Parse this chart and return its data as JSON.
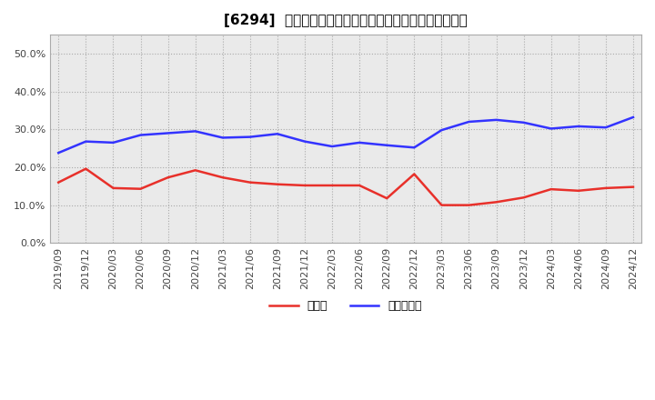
{
  "title": "[6294]  現預金、有利子負債の総資産に対する比率の推移",
  "x_labels": [
    "2019/09",
    "2019/12",
    "2020/03",
    "2020/06",
    "2020/09",
    "2020/12",
    "2021/03",
    "2021/06",
    "2021/09",
    "2021/12",
    "2022/03",
    "2022/06",
    "2022/09",
    "2022/12",
    "2023/03",
    "2023/06",
    "2023/09",
    "2023/12",
    "2024/03",
    "2024/06",
    "2024/09",
    "2024/12"
  ],
  "cash": [
    0.16,
    0.196,
    0.145,
    0.143,
    0.173,
    0.192,
    0.173,
    0.16,
    0.155,
    0.152,
    0.152,
    0.152,
    0.118,
    0.182,
    0.1,
    0.1,
    0.108,
    0.12,
    0.142,
    0.138,
    0.145,
    0.148
  ],
  "debt": [
    0.238,
    0.268,
    0.265,
    0.285,
    0.29,
    0.295,
    0.278,
    0.28,
    0.288,
    0.268,
    0.255,
    0.265,
    0.258,
    0.252,
    0.298,
    0.32,
    0.325,
    0.318,
    0.302,
    0.308,
    0.305,
    0.332
  ],
  "cash_color": "#e8302a",
  "debt_color": "#3333ff",
  "background_color": "#ffffff",
  "plot_bg_color": "#eaeaea",
  "grid_color": "#aaaaaa",
  "ylim": [
    0.0,
    0.55
  ],
  "yticks": [
    0.0,
    0.1,
    0.2,
    0.3,
    0.4,
    0.5
  ],
  "legend_cash": "現預金",
  "legend_debt": "有利子負債",
  "title_fontsize": 11,
  "tick_fontsize": 8
}
